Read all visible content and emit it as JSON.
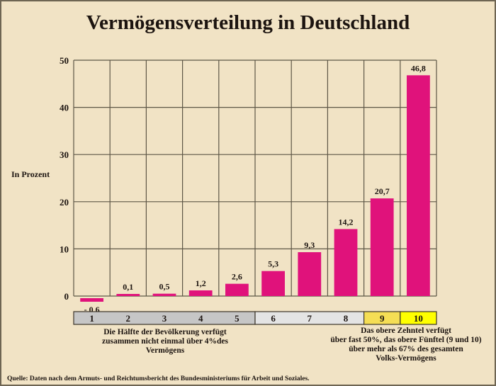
{
  "chart_data": {
    "type": "bar",
    "title": "Vermögensverteilung in Deutschland",
    "ylabel": "In Prozent",
    "xlabel": "",
    "ylim": [
      0,
      50
    ],
    "yticks": [
      0,
      10,
      20,
      30,
      40,
      50
    ],
    "ytick_labels": [
      "0",
      "10",
      "20",
      "30",
      "40",
      "50"
    ],
    "grid": true,
    "categories": [
      "1",
      "2",
      "3",
      "4",
      "5",
      "6",
      "7",
      "8",
      "9",
      "10"
    ],
    "values": [
      -0.6,
      0.1,
      0.5,
      1.2,
      2.6,
      5.3,
      9.3,
      14.2,
      20.7,
      46.8
    ],
    "value_labels": [
      "- 0,6",
      "0,1",
      "0,5",
      "1,2",
      "2,6",
      "5,3",
      "9,3",
      "14,2",
      "20,7",
      "46,8"
    ],
    "category_groups": [
      {
        "members": [
          "1",
          "2",
          "3",
          "4",
          "5"
        ],
        "color": "#c6c6c6"
      },
      {
        "members": [
          "6",
          "7",
          "8"
        ],
        "color": "#e4e4e4"
      },
      {
        "members": [
          "9"
        ],
        "color": "#f5de55"
      },
      {
        "members": [
          "10"
        ],
        "color": "#ffff00"
      }
    ],
    "bar_color": "#e0127b",
    "annotations": {
      "left": [
        "Die Hälfte der Bevölkerung verfügt",
        "zusammen nicht einmal über 4%des",
        "Vermögens"
      ],
      "right": [
        "Das obere Zehntel verfügt",
        "über fast 50%, das obere Fünftel (9 und 10)",
        "über mehr als 67%  des gesamten",
        "Volks-Vermögens"
      ]
    },
    "source": "Quelle: Daten nach dem Armuts- und Reichtumsbericht des Bundesministeriums für Arbeit und Soziales."
  },
  "colors": {
    "background": "#f1e3c5",
    "grid": "#5e5747",
    "text": "#1c1410"
  }
}
